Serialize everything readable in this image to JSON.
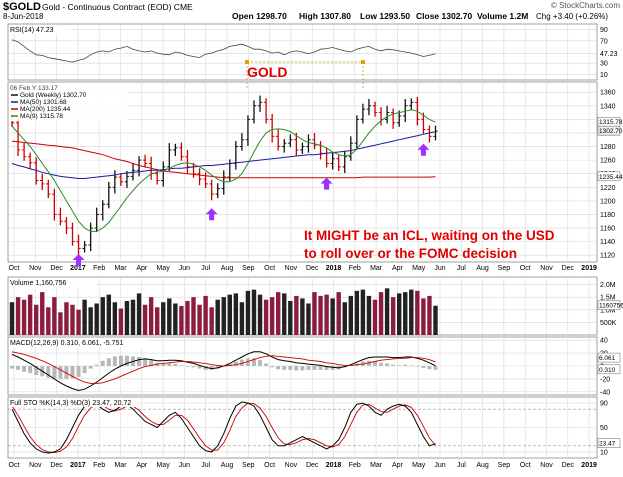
{
  "header": {
    "symbol": "$GOLD",
    "name": "Gold - Continuous Contract (EOD) CME",
    "date": "8-Jun-2018",
    "open": "Open 1298.70",
    "high": "High 1307.80",
    "low": "Low 1293.50",
    "close": "Close 1302.70",
    "volume": "Volume 1.2M",
    "change": "Chg +3.40 (+0.26%)",
    "watermark": "© StockCharts.com"
  },
  "annotations": {
    "gold_label": "GOLD",
    "note_lines": [
      "It MIGHT be an ICL, waiting on the USD",
      "to roll over or the FOMC decision"
    ]
  },
  "colors": {
    "up": "#111111",
    "down": "#cc0000",
    "ma50": "#1a1aa0",
    "ma200": "#cc0000",
    "ma9": "#2a8a2a",
    "volume": "#8c1d3f",
    "arrow": "#9b30ff",
    "label": "#e00000",
    "grid": "#d8d8d8"
  },
  "chart_data": [
    {
      "type": "line",
      "panel": "rsi",
      "legend": "RSI(14) 47.23",
      "ylim": [
        0,
        100
      ],
      "ticks": [
        "90",
        "70",
        "47.23",
        "30",
        "10"
      ],
      "tick_values": [
        90,
        70,
        47.23,
        30,
        10
      ],
      "values": [
        72,
        68,
        60,
        52,
        45,
        44,
        40,
        38,
        36,
        34,
        32,
        35,
        38,
        45,
        50,
        52,
        50,
        55,
        57,
        60,
        55,
        52,
        50,
        52,
        48,
        46,
        45,
        50,
        48,
        44,
        42,
        40,
        46,
        48,
        52,
        55,
        60,
        62,
        64,
        60,
        55,
        55,
        52,
        48,
        50,
        45,
        50,
        52,
        50,
        47,
        50,
        55,
        56,
        58,
        55,
        52,
        50,
        55,
        58,
        60,
        55,
        52,
        55,
        54,
        52,
        50,
        48,
        45,
        42,
        44,
        47
      ]
    },
    {
      "type": "bar",
      "panel": "price",
      "subtype": "ohlc-weekly",
      "legend_top": "06 Feb Y 133.17",
      "legend": [
        {
          "name": "Gold (Weekly) 1302.70"
        },
        {
          "name": "MA(50) 1301.68"
        },
        {
          "name": "MA(200) 1235.44"
        },
        {
          "name": "MA(9) 1315.78"
        }
      ],
      "ylim": [
        1110,
        1375
      ],
      "ticks": [
        "1360",
        "1340",
        "1320",
        "1300",
        "1280",
        "1260",
        "1240",
        "1220",
        "1200",
        "1180",
        "1160",
        "1140",
        "1120"
      ],
      "tick_values": [
        1360,
        1340,
        1320,
        1300,
        1280,
        1260,
        1240,
        1220,
        1200,
        1180,
        1160,
        1140,
        1120
      ],
      "right_labels": [
        "1315.78",
        "1302.70",
        "1235.44"
      ],
      "right_values": [
        1315.78,
        1302.7,
        1235.44
      ],
      "x_labels": [
        "Oct",
        "Nov",
        "Dec",
        "2017",
        "Feb",
        "Mar",
        "Apr",
        "May",
        "Jun",
        "Jul",
        "Aug",
        "Sep",
        "Oct",
        "Nov",
        "Dec",
        "2018",
        "Feb",
        "Mar",
        "Apr",
        "May",
        "Jun",
        "Jul",
        "Aug",
        "Sep",
        "Oct",
        "Nov",
        "Dec",
        "2019"
      ],
      "close": [
        1315,
        1275,
        1265,
        1256,
        1230,
        1225,
        1210,
        1180,
        1170,
        1160,
        1140,
        1130,
        1135,
        1160,
        1180,
        1195,
        1220,
        1235,
        1228,
        1236,
        1245,
        1260,
        1255,
        1240,
        1230,
        1250,
        1275,
        1278,
        1265,
        1250,
        1240,
        1232,
        1225,
        1210,
        1218,
        1235,
        1255,
        1280,
        1290,
        1320,
        1340,
        1345,
        1320,
        1295,
        1280,
        1285,
        1290,
        1275,
        1280,
        1290,
        1282,
        1270,
        1255,
        1262,
        1250,
        1265,
        1285,
        1320,
        1335,
        1340,
        1330,
        1320,
        1330,
        1315,
        1325,
        1340,
        1345,
        1320,
        1305,
        1295,
        1302.7
      ],
      "ma50": [
        1255,
        1252,
        1250,
        1247,
        1245,
        1242,
        1240,
        1238,
        1236,
        1235,
        1234,
        1233,
        1233,
        1234,
        1235,
        1236,
        1237,
        1238,
        1240,
        1241,
        1242,
        1243,
        1244,
        1245,
        1245,
        1246,
        1247,
        1248,
        1248,
        1249,
        1250,
        1251,
        1252,
        1252,
        1253,
        1254,
        1255,
        1256,
        1257,
        1258,
        1259,
        1260,
        1261,
        1262,
        1263,
        1264,
        1265,
        1266,
        1267,
        1268,
        1268,
        1269,
        1270,
        1271,
        1272,
        1273,
        1274,
        1276,
        1278,
        1280,
        1282,
        1284,
        1286,
        1288,
        1290,
        1292,
        1294,
        1296,
        1298,
        1300,
        1301.68
      ],
      "ma200": [
        1288,
        1287,
        1286,
        1285,
        1284,
        1283,
        1282,
        1281,
        1280,
        1279,
        1278,
        1276,
        1274,
        1272,
        1270,
        1268,
        1265,
        1262,
        1260,
        1258,
        1255,
        1252,
        1250,
        1248,
        1246,
        1244,
        1243,
        1242,
        1241,
        1240,
        1239,
        1238,
        1237,
        1236,
        1235,
        1234,
        1234,
        1234,
        1234,
        1234,
        1234,
        1234,
        1234,
        1234,
        1234,
        1234,
        1234,
        1234,
        1234,
        1234,
        1234,
        1234,
        1234,
        1234,
        1234,
        1234,
        1234,
        1234,
        1235,
        1235,
        1235,
        1235,
        1235,
        1235,
        1235,
        1235,
        1235,
        1235,
        1235,
        1235,
        1235.44
      ],
      "ma9": [
        1310,
        1300,
        1290,
        1280,
        1268,
        1255,
        1243,
        1230,
        1215,
        1200,
        1185,
        1170,
        1160,
        1155,
        1155,
        1160,
        1168,
        1180,
        1192,
        1205,
        1215,
        1225,
        1233,
        1240,
        1242,
        1244,
        1248,
        1252,
        1255,
        1256,
        1254,
        1250,
        1245,
        1238,
        1232,
        1228,
        1228,
        1232,
        1240,
        1255,
        1272,
        1288,
        1300,
        1305,
        1306,
        1305,
        1302,
        1296,
        1290,
        1286,
        1284,
        1282,
        1278,
        1272,
        1268,
        1266,
        1268,
        1276,
        1288,
        1300,
        1310,
        1318,
        1324,
        1328,
        1330,
        1332,
        1334,
        1332,
        1326,
        1320,
        1315.78
      ],
      "arrows_at_index": [
        11,
        33,
        52,
        68
      ]
    },
    {
      "type": "bar",
      "panel": "volume",
      "legend": "Volume 1,160,756",
      "ticks": [
        "2.0M",
        "1.5M",
        "1.0M",
        "500K"
      ],
      "tick_values": [
        2000000,
        1500000,
        1000000,
        500000
      ],
      "right_label": "1160756",
      "values": [
        1300000,
        1500000,
        1400000,
        1600000,
        1200000,
        1700000,
        1100000,
        1500000,
        900000,
        1300000,
        1200000,
        1000000,
        1400000,
        1100000,
        1250000,
        1500000,
        1600000,
        1300000,
        1050000,
        1350000,
        1400000,
        1650000,
        1200000,
        1500000,
        1100000,
        1300000,
        1450000,
        1250000,
        1150000,
        1350000,
        1500000,
        1200000,
        1550000,
        1100000,
        1400000,
        1500000,
        1600000,
        1650000,
        1300000,
        1750000,
        1800000,
        1600000,
        1400000,
        1500000,
        1700000,
        1650000,
        1350000,
        1550000,
        1450000,
        1250000,
        1700000,
        1550000,
        1600000,
        1450000,
        1700000,
        1300000,
        1550000,
        1750000,
        1800000,
        1550000,
        1400000,
        1700000,
        1850000,
        1500000,
        1650000,
        1700000,
        1800000,
        1750000,
        1450000,
        1550000,
        1160756
      ]
    },
    {
      "type": "line",
      "panel": "macd",
      "legend": "MACD(12,26,9) 0.310, 6.061, -5.751",
      "ticks": [
        "40",
        "20",
        "0",
        "-20",
        "-40"
      ],
      "tick_values": [
        40,
        20,
        0,
        -20,
        -40
      ],
      "right_labels": [
        "6.061",
        "0.310"
      ],
      "right_values": [
        6.061,
        0.31
      ],
      "macd": [
        18,
        14,
        9,
        4,
        -2,
        -8,
        -14,
        -20,
        -26,
        -31,
        -35,
        -38,
        -36,
        -31,
        -25,
        -18,
        -11,
        -5,
        0,
        4,
        7,
        10,
        11,
        10,
        8,
        8,
        9,
        9,
        8,
        6,
        4,
        1,
        -2,
        -4,
        -3,
        0,
        4,
        9,
        14,
        19,
        22,
        22,
        19,
        14,
        10,
        8,
        7,
        5,
        4,
        3,
        2,
        1,
        -1,
        -2,
        -3,
        -1,
        2,
        6,
        10,
        13,
        14,
        14,
        14,
        13,
        13,
        14,
        14,
        12,
        9,
        5,
        0.31
      ],
      "signal": [
        22,
        20,
        18,
        15,
        12,
        8,
        4,
        -1,
        -6,
        -11,
        -16,
        -21,
        -25,
        -27,
        -27,
        -26,
        -23,
        -20,
        -16,
        -12,
        -8,
        -4,
        -1,
        1,
        3,
        4,
        5,
        6,
        7,
        7,
        6,
        5,
        4,
        2,
        1,
        0,
        1,
        2,
        4,
        7,
        10,
        13,
        15,
        16,
        15,
        14,
        13,
        12,
        11,
        9,
        8,
        7,
        5,
        4,
        2,
        1,
        1,
        2,
        3,
        5,
        7,
        9,
        10,
        11,
        12,
        12,
        13,
        13,
        12,
        10,
        6.061
      ],
      "histogram": [
        -4,
        -6,
        -9,
        -11,
        -14,
        -16,
        -18,
        -19,
        -20,
        -20,
        -19,
        -17,
        -11,
        -4,
        2,
        8,
        12,
        15,
        16,
        16,
        15,
        14,
        12,
        9,
        5,
        4,
        4,
        3,
        1,
        -1,
        -2,
        -4,
        -6,
        -6,
        -4,
        0,
        3,
        7,
        10,
        12,
        12,
        9,
        4,
        -2,
        -5,
        -6,
        -6,
        -7,
        -7,
        -6,
        -6,
        -6,
        -6,
        -6,
        -5,
        -2,
        1,
        4,
        7,
        8,
        7,
        5,
        4,
        2,
        1,
        2,
        1,
        -1,
        -3,
        -5,
        -5.751
      ]
    },
    {
      "type": "line",
      "panel": "stochastic",
      "legend": "Full STO %K(14,3) %D(3) 23.47, 20.72",
      "ylim": [
        0,
        100
      ],
      "ticks": [
        "90",
        "50",
        "10"
      ],
      "tick_values": [
        90,
        50,
        10
      ],
      "right_label": "23.47",
      "k": [
        80,
        60,
        40,
        25,
        15,
        10,
        8,
        10,
        15,
        30,
        50,
        70,
        85,
        90,
        88,
        80,
        75,
        78,
        85,
        88,
        80,
        70,
        60,
        55,
        50,
        60,
        70,
        75,
        65,
        50,
        35,
        20,
        12,
        10,
        20,
        40,
        65,
        85,
        92,
        90,
        85,
        70,
        50,
        30,
        20,
        20,
        25,
        30,
        35,
        30,
        25,
        20,
        15,
        20,
        30,
        50,
        75,
        88,
        90,
        85,
        75,
        70,
        80,
        85,
        88,
        85,
        75,
        55,
        35,
        20,
        23.47
      ],
      "d": [
        85,
        70,
        52,
        35,
        22,
        14,
        10,
        9,
        11,
        18,
        32,
        52,
        70,
        82,
        88,
        86,
        80,
        77,
        80,
        85,
        85,
        78,
        68,
        60,
        55,
        55,
        62,
        70,
        70,
        62,
        48,
        33,
        20,
        13,
        13,
        25,
        45,
        68,
        82,
        90,
        89,
        82,
        68,
        50,
        33,
        23,
        22,
        25,
        30,
        32,
        30,
        25,
        20,
        18,
        22,
        35,
        55,
        75,
        87,
        88,
        82,
        76,
        75,
        80,
        85,
        87,
        83,
        70,
        52,
        33,
        20.72
      ]
    }
  ]
}
